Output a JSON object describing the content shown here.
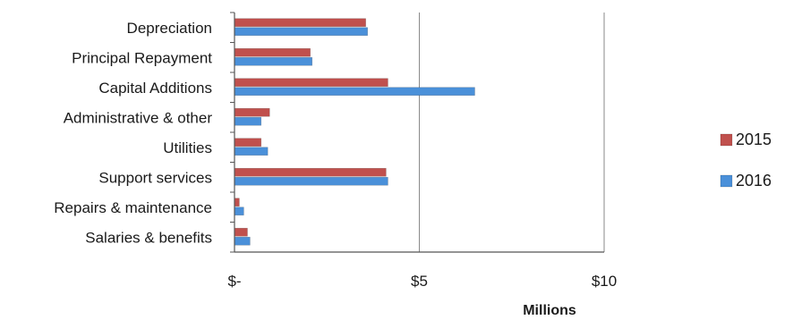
{
  "chart_data": {
    "type": "bar",
    "orientation": "horizontal",
    "categories": [
      "Depreciation",
      "Principal Repayment",
      "Capital Additions",
      "Administrative & other",
      "Utilities",
      "Support services",
      "Repairs & maintenance",
      "Salaries & benefits"
    ],
    "series": [
      {
        "name": "2015",
        "color": "#c0504d",
        "values": [
          3.55,
          2.05,
          4.15,
          0.95,
          0.72,
          4.1,
          0.13,
          0.35
        ]
      },
      {
        "name": "2016",
        "color": "#4a90d9",
        "values": [
          3.6,
          2.1,
          6.5,
          0.72,
          0.9,
          4.15,
          0.25,
          0.42
        ]
      }
    ],
    "xlim": [
      0,
      10
    ],
    "xticks": [
      {
        "value": 0,
        "label": "$-"
      },
      {
        "value": 5,
        "label": "$5"
      },
      {
        "value": 10,
        "label": "$10"
      }
    ],
    "xlabel": "Millions",
    "grid": "vertical",
    "legend": "right"
  }
}
